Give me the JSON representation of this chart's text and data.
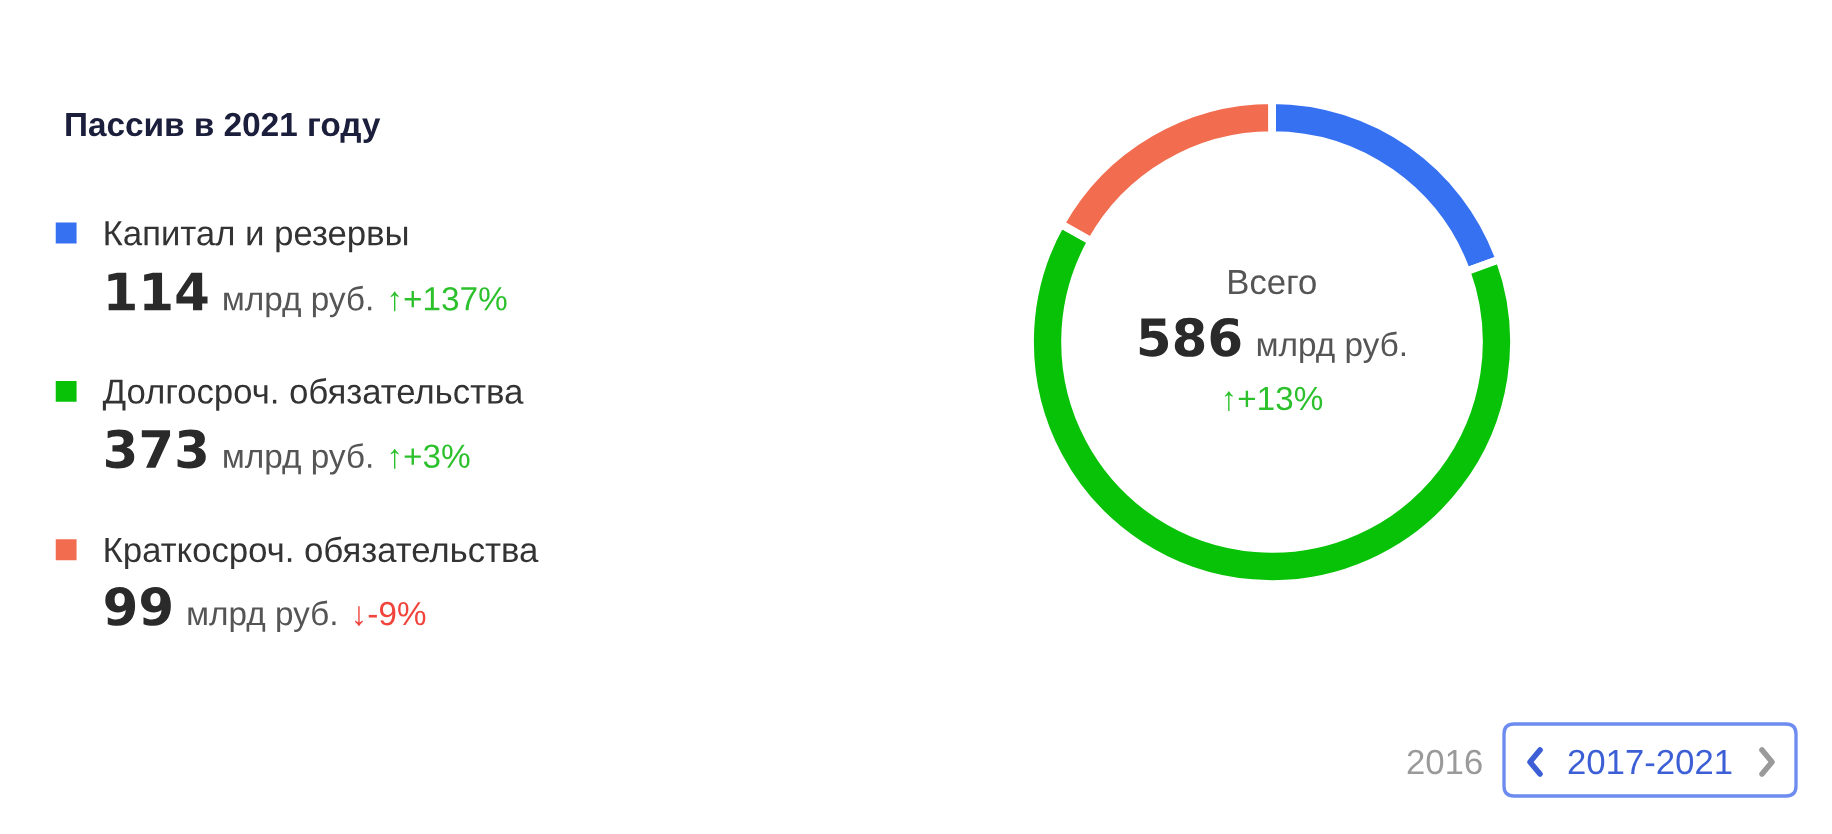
{
  "chart_data": {
    "type": "donut",
    "title": "Пассив в 2021 году",
    "categories": [
      "Капитал и резервы",
      "Долгосроч. обязательства",
      "Краткосроч. обязательства"
    ],
    "values": [
      114,
      373,
      99
    ],
    "colors": [
      "#3671f1",
      "#08c208",
      "#f26d50"
    ],
    "data_labels": true,
    "legend": "left",
    "annotations": [
      "млрд руб.",
      "↑+137%",
      "млрд руб.",
      "↑+3%",
      "млрд руб.",
      "↓-9%",
      "Всего",
      "586",
      "млрд руб.",
      "↑+13%",
      "2016",
      "2017-2021"
    ]
  }
}
